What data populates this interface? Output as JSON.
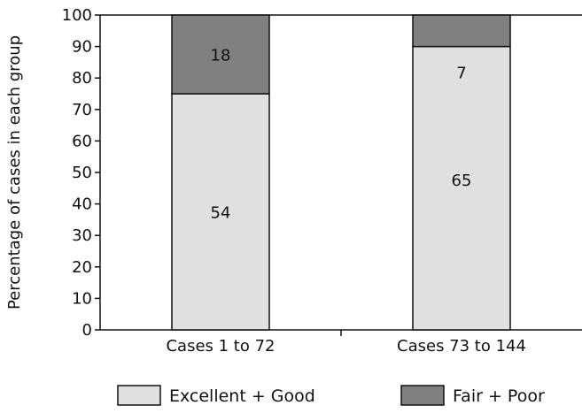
{
  "chart_data": {
    "type": "bar",
    "stacked": true,
    "categories": [
      "Cases 1 to 72",
      "Cases 73 to 144"
    ],
    "series": [
      {
        "name": "Excellent + Good",
        "values": [
          75,
          90
        ],
        "labels": [
          "54",
          "65"
        ],
        "color": "#e0e0e0"
      },
      {
        "name": "Fair + Poor",
        "values": [
          25,
          10
        ],
        "labels": [
          "18",
          "7"
        ],
        "color": "#808080"
      }
    ],
    "title": "",
    "xlabel": "",
    "ylabel": "Percentage of cases in each group",
    "ylim": [
      0,
      100
    ],
    "yticks": [
      0,
      10,
      20,
      30,
      40,
      50,
      60,
      70,
      80,
      90,
      100
    ],
    "grid": false,
    "legend_position": "bottom"
  }
}
